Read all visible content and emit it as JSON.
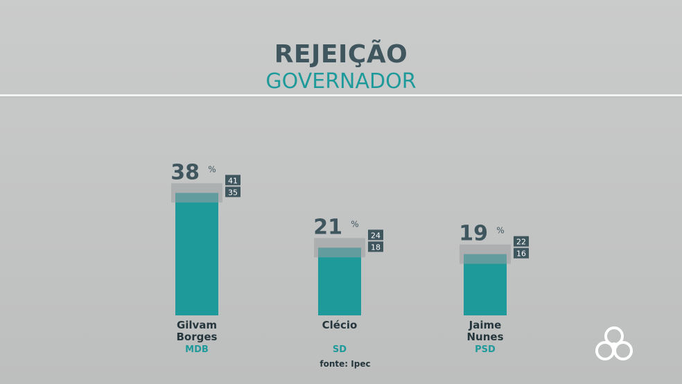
{
  "header": {
    "title": "REJEIÇÃO",
    "subtitle": "GOVERNADOR"
  },
  "chart_data": {
    "type": "bar",
    "title": "REJEIÇÃO",
    "subtitle": "GOVERNADOR",
    "categories": [
      "Gilvam Borges",
      "Clécio",
      "Jaime Nunes"
    ],
    "category_lines": [
      [
        "Gilvam",
        "Borges"
      ],
      [
        "Clécio"
      ],
      [
        "Jaime",
        "Nunes"
      ]
    ],
    "parties": [
      "MDB",
      "SD",
      "PSD"
    ],
    "values": [
      38,
      21,
      19
    ],
    "upper": [
      41,
      24,
      22
    ],
    "lower": [
      35,
      18,
      16
    ],
    "value_labels": [
      "38",
      "21",
      "19"
    ],
    "unit": "%",
    "ylim": [
      0,
      45
    ],
    "grid": false,
    "colors": {
      "bar": "#1f9a9b",
      "margin_band": "#9a9fa1",
      "value_text": "#3f565f",
      "box_bg": "#3f565f",
      "box_text": "#ffffff"
    }
  },
  "source": "fonte: Ipec",
  "logo": {
    "icon": "network-logo-icon"
  }
}
